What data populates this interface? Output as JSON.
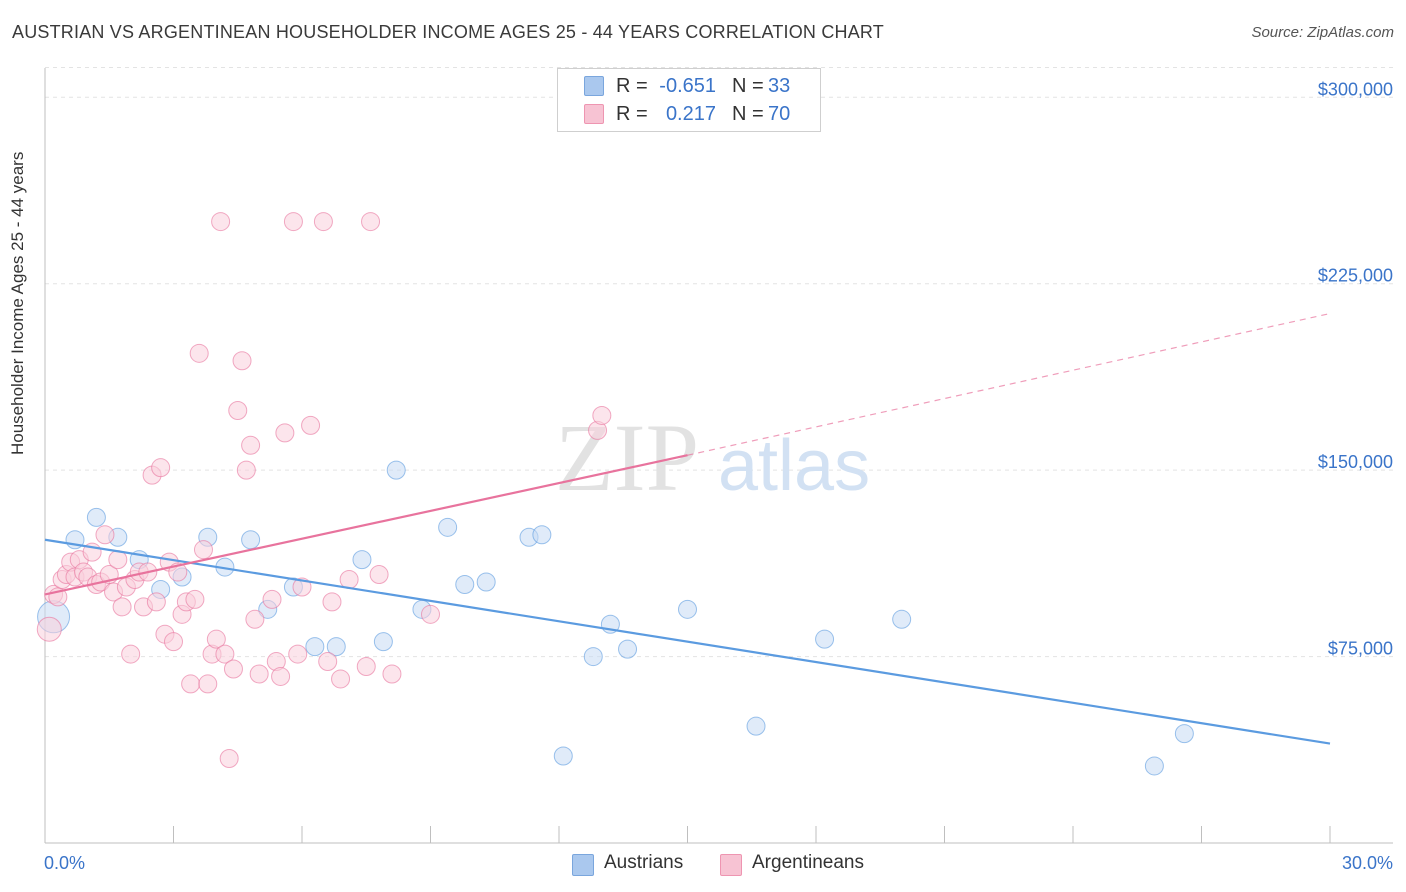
{
  "header": {
    "title": "AUSTRIAN VS ARGENTINEAN HOUSEHOLDER INCOME AGES 25 - 44 YEARS CORRELATION CHART",
    "source": "Source: ZipAtlas.com"
  },
  "watermark": {
    "part1": "ZIP",
    "part2": "atlas"
  },
  "stats": [
    {
      "r_label": "R =",
      "r_value": "-0.651",
      "n_label": "N =",
      "n_value": "33",
      "color": "#aac8ee",
      "border": "#7aa6dd"
    },
    {
      "r_label": "R =",
      "r_value": "0.217",
      "n_label": "N =",
      "n_value": "70",
      "color": "#f7c3d3",
      "border": "#ee95b1"
    }
  ],
  "legend": [
    {
      "label": "Austrians",
      "color": "#aac8ee",
      "border": "#7aa6dd"
    },
    {
      "label": "Argentineans",
      "color": "#f7c3d3",
      "border": "#ee95b1"
    }
  ],
  "chart_data": {
    "type": "scatter",
    "title": "AUSTRIAN VS ARGENTINEAN HOUSEHOLDER INCOME AGES 25 - 44 YEARS CORRELATION CHART",
    "xlabel": "",
    "ylabel": "Householder Income Ages 25 - 44 years",
    "xlim": [
      0,
      30
    ],
    "ylim": [
      0,
      315000
    ],
    "x_tick_labels": [
      "0.0%",
      "30.0%"
    ],
    "y_ticks": [
      75000,
      150000,
      225000,
      300000
    ],
    "y_tick_labels": [
      "$75,000",
      "$150,000",
      "$225,000",
      "$300,000"
    ],
    "grid": true,
    "legend_position": "bottom-center",
    "series": [
      {
        "name": "Austrians",
        "color": "#5b9be0",
        "fill": "#c7daf4",
        "trend": {
          "x": [
            0,
            30
          ],
          "y": [
            122000,
            40000
          ],
          "dashed_to": null
        },
        "points": [
          [
            0.2,
            91000,
            16
          ],
          [
            1.2,
            131000,
            9
          ],
          [
            0.7,
            122000,
            9
          ],
          [
            1.7,
            123000,
            9
          ],
          [
            2.2,
            114000,
            9
          ],
          [
            2.7,
            102000,
            9
          ],
          [
            3.2,
            107000,
            9
          ],
          [
            3.8,
            123000,
            9
          ],
          [
            4.2,
            111000,
            9
          ],
          [
            4.8,
            122000,
            9
          ],
          [
            5.2,
            94000,
            9
          ],
          [
            5.8,
            103000,
            9
          ],
          [
            6.3,
            79000,
            9
          ],
          [
            6.8,
            79000,
            9
          ],
          [
            7.4,
            114000,
            9
          ],
          [
            7.9,
            81000,
            9
          ],
          [
            8.2,
            150000,
            9
          ],
          [
            8.8,
            94000,
            9
          ],
          [
            9.4,
            127000,
            9
          ],
          [
            9.8,
            104000,
            9
          ],
          [
            10.3,
            105000,
            9
          ],
          [
            11.3,
            123000,
            9
          ],
          [
            11.6,
            124000,
            9
          ],
          [
            12.1,
            35000,
            9
          ],
          [
            12.8,
            75000,
            9
          ],
          [
            13.2,
            88000,
            9
          ],
          [
            13.6,
            78000,
            9
          ],
          [
            15.0,
            94000,
            9
          ],
          [
            16.6,
            47000,
            9
          ],
          [
            18.2,
            82000,
            9
          ],
          [
            20.0,
            90000,
            9
          ],
          [
            25.9,
            31000,
            9
          ],
          [
            26.6,
            44000,
            9
          ]
        ]
      },
      {
        "name": "Argentineans",
        "color": "#e8739d",
        "fill": "#f9d0dd",
        "trend": {
          "x": [
            0,
            15
          ],
          "y": [
            100000,
            156000
          ],
          "dashed_to": [
            30,
            213000
          ]
        },
        "points": [
          [
            0.1,
            86000,
            12
          ],
          [
            0.2,
            100000,
            9
          ],
          [
            0.3,
            99000,
            9
          ],
          [
            0.4,
            106000,
            9
          ],
          [
            0.5,
            108000,
            9
          ],
          [
            0.6,
            113000,
            9
          ],
          [
            0.7,
            107000,
            9
          ],
          [
            0.8,
            114000,
            9
          ],
          [
            0.9,
            109000,
            9
          ],
          [
            1.0,
            107000,
            9
          ],
          [
            1.1,
            117000,
            9
          ],
          [
            1.2,
            104000,
            9
          ],
          [
            1.3,
            105000,
            9
          ],
          [
            1.4,
            124000,
            9
          ],
          [
            1.5,
            108000,
            9
          ],
          [
            1.6,
            101000,
            9
          ],
          [
            1.7,
            114000,
            9
          ],
          [
            1.8,
            95000,
            9
          ],
          [
            1.9,
            103000,
            9
          ],
          [
            2.0,
            76000,
            9
          ],
          [
            2.1,
            106000,
            9
          ],
          [
            2.2,
            109000,
            9
          ],
          [
            2.3,
            95000,
            9
          ],
          [
            2.4,
            109000,
            9
          ],
          [
            2.5,
            148000,
            9
          ],
          [
            2.6,
            97000,
            9
          ],
          [
            2.7,
            151000,
            9
          ],
          [
            2.8,
            84000,
            9
          ],
          [
            2.9,
            113000,
            9
          ],
          [
            3.0,
            81000,
            9
          ],
          [
            3.1,
            109000,
            9
          ],
          [
            3.2,
            92000,
            9
          ],
          [
            3.3,
            97000,
            9
          ],
          [
            3.4,
            64000,
            9
          ],
          [
            3.5,
            98000,
            9
          ],
          [
            3.6,
            197000,
            9
          ],
          [
            3.7,
            118000,
            9
          ],
          [
            3.8,
            64000,
            9
          ],
          [
            3.9,
            76000,
            9
          ],
          [
            4.0,
            82000,
            9
          ],
          [
            4.1,
            250000,
            9
          ],
          [
            4.2,
            76000,
            9
          ],
          [
            4.3,
            34000,
            9
          ],
          [
            4.4,
            70000,
            9
          ],
          [
            4.5,
            174000,
            9
          ],
          [
            4.6,
            194000,
            9
          ],
          [
            4.7,
            150000,
            9
          ],
          [
            4.8,
            160000,
            9
          ],
          [
            4.9,
            90000,
            9
          ],
          [
            5.0,
            68000,
            9
          ],
          [
            5.3,
            98000,
            9
          ],
          [
            5.4,
            73000,
            9
          ],
          [
            5.5,
            67000,
            9
          ],
          [
            5.6,
            165000,
            9
          ],
          [
            5.8,
            250000,
            9
          ],
          [
            5.9,
            76000,
            9
          ],
          [
            6.0,
            103000,
            9
          ],
          [
            6.2,
            168000,
            9
          ],
          [
            6.5,
            250000,
            9
          ],
          [
            6.6,
            73000,
            9
          ],
          [
            6.7,
            97000,
            9
          ],
          [
            6.9,
            66000,
            9
          ],
          [
            7.1,
            106000,
            9
          ],
          [
            7.5,
            71000,
            9
          ],
          [
            7.6,
            250000,
            9
          ],
          [
            7.8,
            108000,
            9
          ],
          [
            8.1,
            68000,
            9
          ],
          [
            9.0,
            92000,
            9
          ],
          [
            12.9,
            166000,
            9
          ],
          [
            13.0,
            172000,
            9
          ]
        ]
      }
    ]
  }
}
